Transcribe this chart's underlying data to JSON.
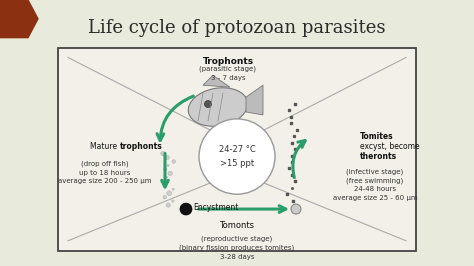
{
  "title": "Life cycle of protozoan parasites",
  "title_fontsize": 13,
  "bg_color": "#e8ebdb",
  "box_bg": "#f2f0e8",
  "box_edge": "#444444",
  "center_text_line1": "24-27 °C",
  "center_text_line2": ">15 ppt",
  "trophonts_label": "Trophonts",
  "trophonts_sub": "(parasitic stage)\n3 - 7 days",
  "mature_line1": "Mature ",
  "mature_bold": "trophonts",
  "mature_sub": "(drop off fish)\nup to 18 hours\naverage size 200 - 250 μm",
  "tomites_pre": "Tomites",
  "tomites_mid": " excyst, become ",
  "tomites_bold": "theronts",
  "tomites_sub": "(infective stage)\n(free swimming)\n24-48 hours\naverage size 25 - 60 μm",
  "tomonts_label": "Tomonts",
  "tomonts_sub": "(reproductive stage)\n(binary fission produces tomites)\n3-28 days",
  "encystment_label": "Encystment",
  "arrow_color": "#2a9d6a",
  "red_accent": "#8b3010",
  "line_color": "#aaaaaa",
  "dot_light": "#cccccc",
  "dot_dark": "#444444"
}
